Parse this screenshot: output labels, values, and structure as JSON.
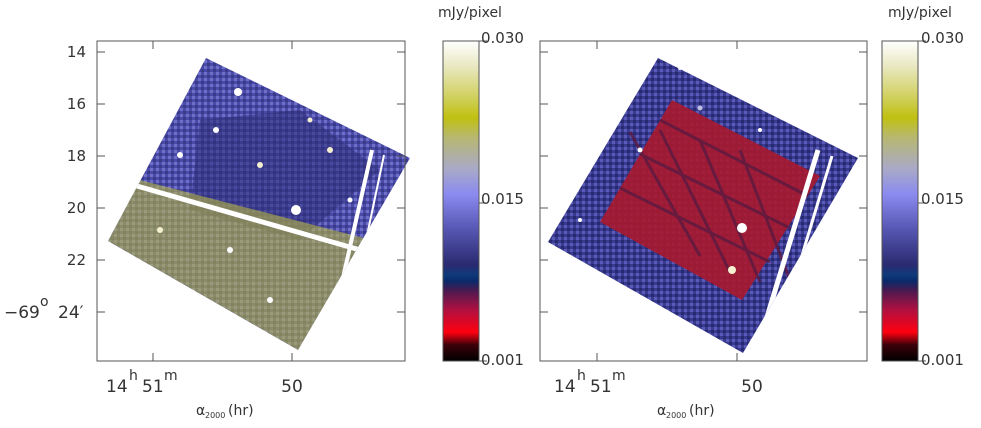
{
  "figure": {
    "y_ticks": [
      "14",
      "16",
      "18",
      "20",
      "22"
    ],
    "dec_last": {
      "prefix": "−69",
      "degree": "o",
      "value": "24′"
    },
    "ra_ticks": {
      "hours": "14",
      "h_sup": "h",
      "minutes": "51",
      "m_sup": "m",
      "second": "50"
    },
    "x_axis_label": {
      "alpha": "α",
      "sub": "2000",
      "unit": "(hr)"
    }
  },
  "panels": [
    {
      "colorbar": {
        "unit": "mJy/pixel",
        "ticks": [
          "0.030",
          "0.015",
          "0.001"
        ]
      }
    },
    {
      "colorbar": {
        "unit": "mJy/pixel",
        "ticks": [
          "0.030",
          "0.015",
          "0.001"
        ]
      }
    }
  ],
  "colors": {
    "colormap": [
      "#000000",
      "#5a0010",
      "#c00020",
      "#ff0020",
      "#102a6a",
      "#3a3a8a",
      "#6f6fc8",
      "#8f8fe0",
      "#c0c090",
      "#bfbf1a",
      "#f4f0d0",
      "#ffffff"
    ],
    "axes": "#555555"
  }
}
